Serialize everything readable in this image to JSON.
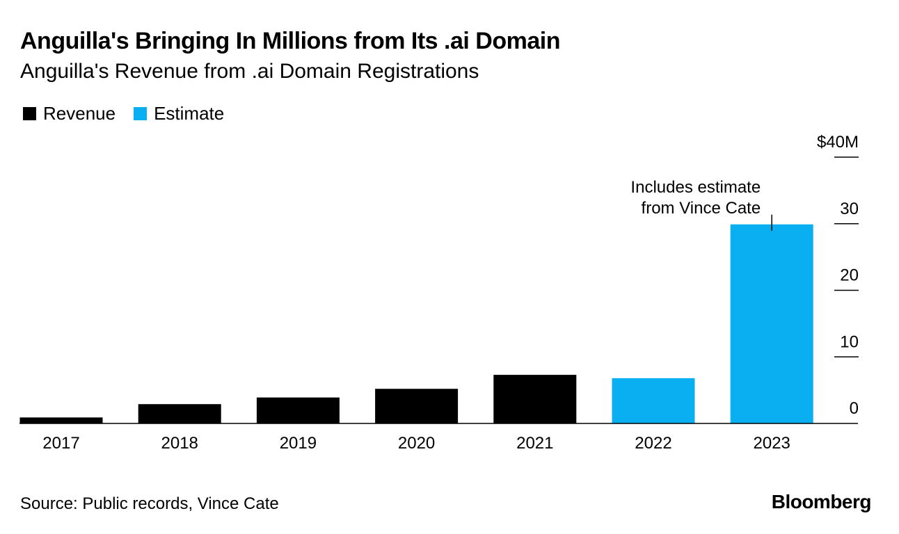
{
  "header": {
    "title": "Anguilla's Bringing In Millions from Its .ai Domain",
    "subtitle": "Anguilla's Revenue from .ai Domain Registrations"
  },
  "legend": [
    {
      "label": "Revenue",
      "color": "#000000"
    },
    {
      "label": "Estimate",
      "color": "#0aaff1"
    }
  ],
  "chart_data": {
    "type": "bar",
    "categories": [
      "2017",
      "2018",
      "2019",
      "2020",
      "2021",
      "2022",
      "2023"
    ],
    "values": [
      0.9,
      2.9,
      3.9,
      5.2,
      7.3,
      6.8,
      29.9
    ],
    "series_kind": [
      "Revenue",
      "Revenue",
      "Revenue",
      "Revenue",
      "Revenue",
      "Estimate",
      "Estimate"
    ],
    "colors": {
      "Revenue": "#000000",
      "Estimate": "#0aaff1"
    },
    "ylim": [
      0,
      40
    ],
    "yticks": [
      0,
      10,
      20,
      30,
      40
    ],
    "ytick_labels": [
      "0",
      "10",
      "20",
      "30",
      "$40M"
    ],
    "y_axis_position": "right",
    "annotation": {
      "category": "2023",
      "lines": [
        "Includes estimate",
        "from Vince Cate"
      ]
    }
  },
  "footer": {
    "source": "Source: Public records, Vince Cate",
    "brand": "Bloomberg"
  }
}
